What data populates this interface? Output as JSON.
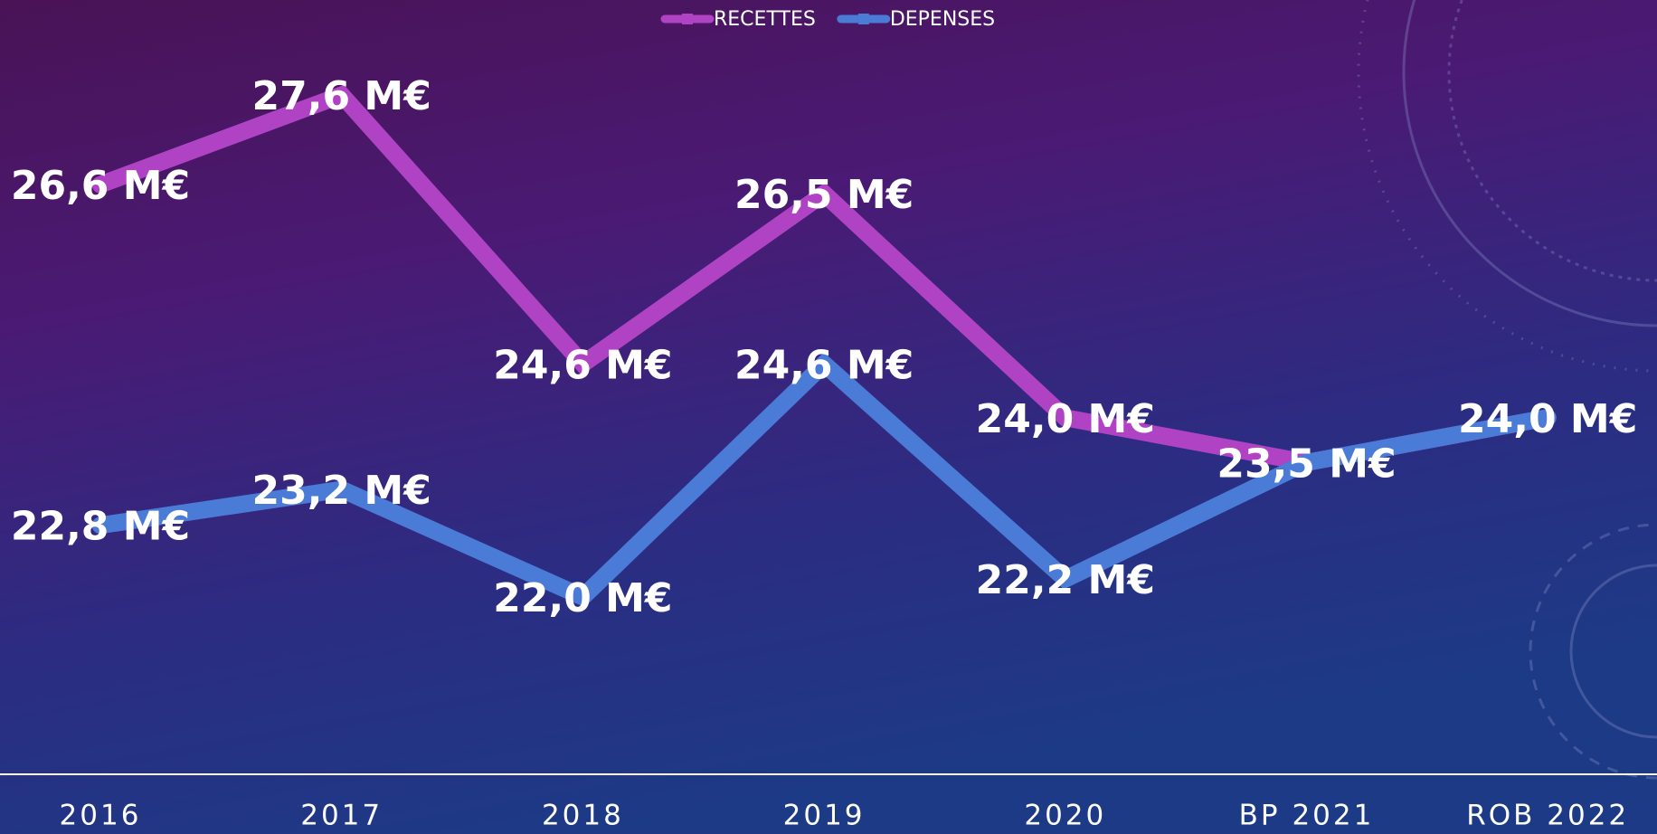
{
  "chart_data": {
    "type": "line",
    "categories": [
      "2016",
      "2017",
      "2018",
      "2019",
      "2020",
      "BP 2021",
      "ROB 2022"
    ],
    "series": [
      {
        "name": "RECETTES",
        "color": "#b043c4",
        "values": [
          26.6,
          27.6,
          24.6,
          26.5,
          24.0,
          23.5,
          24.0
        ],
        "value_labels": [
          "26,6 M€",
          "27,6 M€",
          "24,6 M€",
          "26,5 M€",
          "24,0 M€",
          "23,5 M€",
          "24,0 M€"
        ]
      },
      {
        "name": "DEPENSES",
        "color": "#4a7bd6",
        "values": [
          22.8,
          23.2,
          22.0,
          24.6,
          22.2,
          23.5,
          24.0
        ],
        "value_labels": [
          "22,8 M€",
          "23,2 M€",
          "22,0 M€",
          "24,6 M€",
          "22,2 M€",
          null,
          null
        ]
      }
    ],
    "legend": "top"
  }
}
